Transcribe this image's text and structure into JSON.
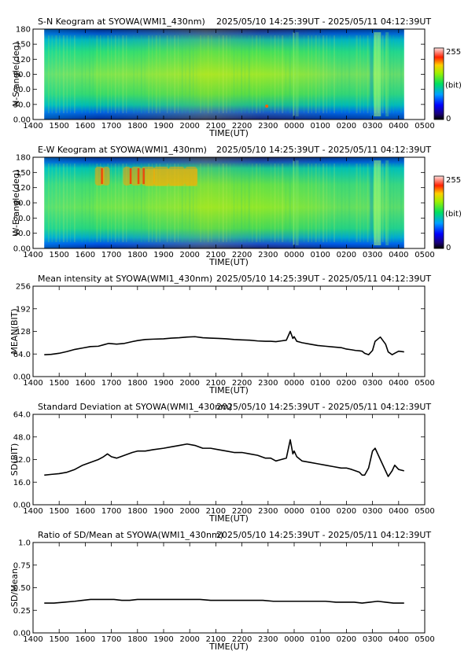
{
  "timeframe": "2025/05/10 14:25:39UT - 2025/05/11 04:12:39UT",
  "x_ticks": [
    "1400",
    "1500",
    "1600",
    "1700",
    "1800",
    "1900",
    "2000",
    "2100",
    "2200",
    "2300",
    "0000",
    "0100",
    "0200",
    "0300",
    "0400",
    "0500"
  ],
  "xlabel": "TIME(UT)",
  "colors": {
    "axis": "#000000",
    "line": "#000000"
  },
  "keograms": [
    {
      "title": "S-N Keogram at SYOWA(WMI1_430nm)",
      "ylabel": "N-S angle(deg)",
      "y_ticks": [
        "0.00",
        "30.0",
        "60.0",
        "90.0",
        "120",
        "150",
        "180"
      ],
      "colorbar": {
        "max": "255",
        "min": "0",
        "unit": "(bit)"
      },
      "data_start_hour": 14.43,
      "data_end_hour": 28.21,
      "band": "sn"
    },
    {
      "title": "E-W Keogram at SYOWA(WMI1_430nm)",
      "ylabel": "W-E angle(deg)",
      "y_ticks": [
        "0.00",
        "30.0",
        "60.0",
        "90.0",
        "120",
        "150",
        "180"
      ],
      "colorbar": {
        "max": "255",
        "min": "0",
        "unit": "(bit)"
      },
      "data_start_hour": 14.43,
      "data_end_hour": 28.21,
      "band": "ew"
    }
  ],
  "chart_data": [
    {
      "type": "line",
      "title": "Mean intensity at SYOWA(WMI1_430nm)",
      "xlabel": "TIME(UT)",
      "ylabel": "MEAN(BIT)",
      "xlim": [
        14,
        29
      ],
      "ylim": [
        0,
        256
      ],
      "y_ticks": [
        "0.00",
        "64.0",
        "128",
        "192",
        "256"
      ],
      "y_tick_values": [
        0,
        64,
        128,
        192,
        256
      ],
      "series": [
        {
          "x": [
            14.43,
            14.7,
            15.0,
            15.3,
            15.6,
            15.9,
            16.2,
            16.5,
            16.7,
            16.9,
            17.2,
            17.5,
            17.8,
            18.0,
            18.3,
            18.6,
            19.0,
            19.3,
            19.6,
            19.9,
            20.2,
            20.5,
            20.8,
            21.1,
            21.4,
            21.7,
            22.0,
            22.3,
            22.6,
            22.9,
            23.1,
            23.3,
            23.5,
            23.7,
            23.85,
            23.95,
            24.0,
            24.1,
            24.3,
            24.6,
            24.9,
            25.2,
            25.5,
            25.8,
            26.0,
            26.2,
            26.35,
            26.5,
            26.6,
            26.7,
            26.85,
            27.0,
            27.1,
            27.3,
            27.5,
            27.6,
            27.75,
            27.85,
            28.0,
            28.21
          ],
          "y": [
            62,
            63,
            66,
            71,
            77,
            81,
            85,
            86,
            90,
            94,
            92,
            94,
            99,
            102,
            105,
            106,
            107,
            109,
            110,
            112,
            113,
            110,
            109,
            108,
            107,
            105,
            104,
            103,
            101,
            100,
            100,
            99,
            101,
            103,
            128,
            108,
            113,
            100,
            96,
            92,
            88,
            86,
            84,
            82,
            78,
            76,
            74,
            73,
            72,
            66,
            62,
            74,
            100,
            112,
            92,
            70,
            62,
            66,
            72,
            70
          ]
        }
      ]
    },
    {
      "type": "line",
      "title": "Standard Deviation at SYOWA(WMI1_430nm)",
      "xlabel": "TIME(UT)",
      "ylabel": "SD(BIT)",
      "xlim": [
        14,
        29
      ],
      "ylim": [
        0,
        64
      ],
      "y_ticks": [
        "0.00",
        "16.0",
        "32.0",
        "48.0",
        "64.0"
      ],
      "y_tick_values": [
        0,
        16,
        32,
        48,
        64
      ],
      "series": [
        {
          "x": [
            14.43,
            14.7,
            15.0,
            15.3,
            15.6,
            15.9,
            16.2,
            16.5,
            16.7,
            16.85,
            17.0,
            17.2,
            17.5,
            17.8,
            18.0,
            18.3,
            18.6,
            19.0,
            19.3,
            19.6,
            19.9,
            20.2,
            20.5,
            20.8,
            21.1,
            21.4,
            21.7,
            22.0,
            22.3,
            22.6,
            22.9,
            23.1,
            23.3,
            23.5,
            23.7,
            23.85,
            23.95,
            24.0,
            24.1,
            24.3,
            24.6,
            24.9,
            25.2,
            25.5,
            25.8,
            26.0,
            26.2,
            26.35,
            26.5,
            26.6,
            26.7,
            26.85,
            27.0,
            27.1,
            27.3,
            27.5,
            27.6,
            27.75,
            27.85,
            28.0,
            28.21
          ],
          "y": [
            21,
            21.5,
            22,
            23,
            25,
            28,
            30,
            32,
            34,
            36,
            34,
            33,
            35,
            37,
            38,
            38,
            39,
            40,
            41,
            42,
            43,
            42,
            40,
            40,
            39,
            38,
            37,
            37,
            36,
            35,
            33,
            33,
            31,
            32,
            33,
            46,
            36,
            38,
            34,
            31,
            30,
            29,
            28,
            27,
            26,
            26,
            25,
            24,
            23,
            21,
            21,
            26,
            38,
            40,
            32,
            24,
            20,
            24,
            28,
            25,
            24
          ]
        }
      ]
    },
    {
      "type": "line",
      "title": "Ratio of SD/Mean at SYOWA(WMI1_430nm)",
      "xlabel": "TIME(UT)",
      "ylabel": "SD/Mean",
      "xlim": [
        14,
        29
      ],
      "ylim": [
        0,
        1
      ],
      "y_ticks": [
        "0.00",
        "0.25",
        "0.50",
        "0.75",
        "1.0"
      ],
      "y_tick_values": [
        0,
        0.25,
        0.5,
        0.75,
        1.0
      ],
      "series": [
        {
          "x": [
            14.43,
            14.8,
            15.2,
            15.6,
            15.9,
            16.2,
            16.5,
            16.8,
            17.1,
            17.4,
            17.7,
            18.0,
            18.4,
            18.8,
            19.2,
            19.6,
            20.0,
            20.4,
            20.8,
            21.2,
            21.6,
            22.0,
            22.4,
            22.8,
            23.2,
            23.6,
            24.0,
            24.4,
            24.8,
            25.2,
            25.6,
            26.0,
            26.3,
            26.6,
            26.9,
            27.2,
            27.5,
            27.8,
            28.0,
            28.21
          ],
          "y": [
            0.33,
            0.33,
            0.34,
            0.35,
            0.36,
            0.37,
            0.37,
            0.37,
            0.37,
            0.36,
            0.36,
            0.37,
            0.37,
            0.37,
            0.37,
            0.37,
            0.37,
            0.37,
            0.36,
            0.36,
            0.36,
            0.36,
            0.36,
            0.36,
            0.35,
            0.35,
            0.35,
            0.35,
            0.35,
            0.35,
            0.34,
            0.34,
            0.34,
            0.33,
            0.34,
            0.35,
            0.34,
            0.33,
            0.33,
            0.33
          ]
        }
      ]
    }
  ]
}
